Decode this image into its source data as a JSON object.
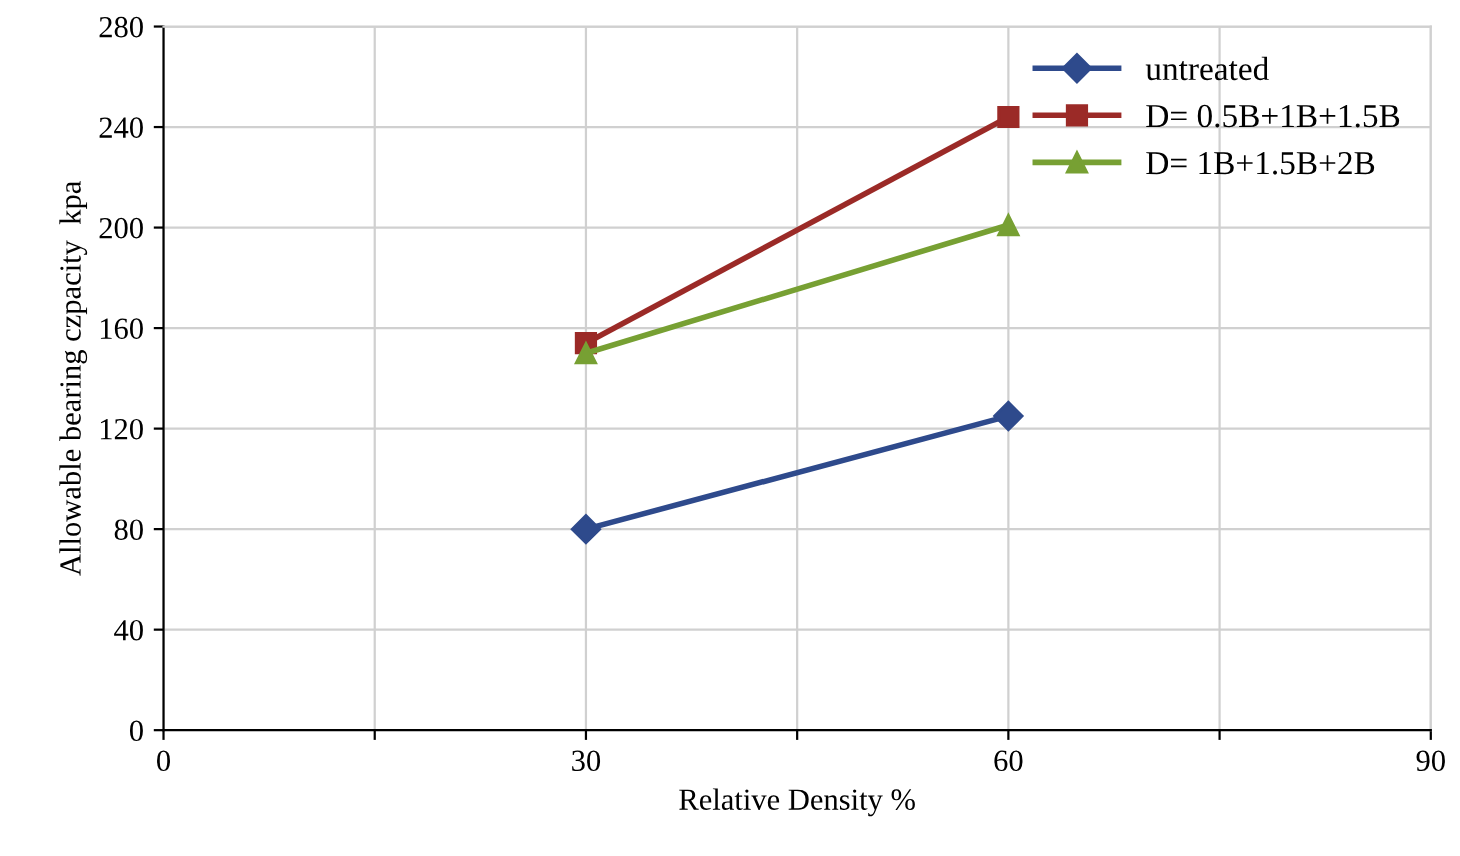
{
  "chart_data": {
    "type": "line",
    "xlabel": "Relative Density %",
    "ylabel": "Allowable bearing czpacity  kpa",
    "xlim": [
      0,
      90
    ],
    "xticks": [
      0,
      {
        "value": 15,
        "label": null
      },
      30,
      {
        "value": 45,
        "label": null
      },
      60,
      {
        "value": 75,
        "label": null
      },
      90
    ],
    "x": [
      30,
      60
    ],
    "ylim": [
      0,
      280
    ],
    "yticks": [
      0,
      40,
      80,
      120,
      160,
      200,
      240,
      280
    ],
    "grid": true,
    "legend": "top right",
    "line_style": "solid",
    "series": [
      {
        "name": "untreated",
        "color": "#2e4a8c",
        "marker": "diamond",
        "values": [
          80,
          125
        ]
      },
      {
        "name": "D= 0.5B+1B+1.5B",
        "color": "#9b2a27",
        "marker": "square",
        "values": [
          154,
          244
        ]
      },
      {
        "name": "D= 1B+1.5B+2B",
        "color": "#77a033",
        "marker": "triangle",
        "values": [
          150,
          201
        ]
      }
    ]
  }
}
